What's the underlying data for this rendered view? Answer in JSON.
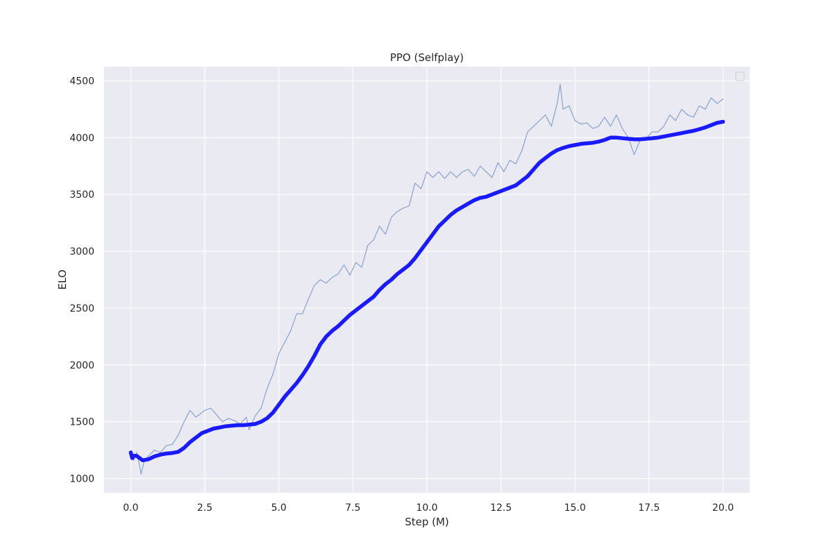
{
  "chart_data": {
    "type": "line",
    "title": "PPO (Selfplay)",
    "xlabel": "Step (M)",
    "ylabel": "ELO",
    "xlim": [
      -0.9,
      20.9
    ],
    "ylim": [
      875,
      4625
    ],
    "xticks": [
      0.0,
      2.5,
      5.0,
      7.5,
      10.0,
      12.5,
      15.0,
      17.5,
      20.0
    ],
    "xtick_labels": [
      "0.0",
      "2.5",
      "5.0",
      "7.5",
      "10.0",
      "12.5",
      "15.0",
      "17.5",
      "20.0"
    ],
    "yticks": [
      1000,
      1500,
      2000,
      2500,
      3000,
      3500,
      4000,
      4500
    ],
    "ytick_labels": [
      "1000",
      "1500",
      "2000",
      "2500",
      "3000",
      "3500",
      "4000",
      "4500"
    ],
    "grid": true,
    "legend": {
      "placement": "top-right",
      "entries": []
    },
    "colors": {
      "background": "#eaeaf2",
      "grid": "#ffffff",
      "raw": "#8ea7cf",
      "smooth": "#1a1aff"
    },
    "series": [
      {
        "role": "raw",
        "x": [
          0.0,
          0.1,
          0.2,
          0.3,
          0.35,
          0.45,
          0.6,
          0.8,
          1.0,
          1.2,
          1.4,
          1.6,
          1.8,
          2.0,
          2.2,
          2.5,
          2.7,
          2.9,
          3.1,
          3.3,
          3.5,
          3.7,
          3.9,
          4.0,
          4.2,
          4.4,
          4.6,
          4.8,
          5.0,
          5.2,
          5.4,
          5.6,
          5.8,
          6.0,
          6.2,
          6.4,
          6.6,
          6.8,
          7.0,
          7.2,
          7.4,
          7.6,
          7.8,
          8.0,
          8.2,
          8.4,
          8.6,
          8.8,
          9.0,
          9.2,
          9.4,
          9.6,
          9.8,
          10.0,
          10.2,
          10.4,
          10.6,
          10.8,
          11.0,
          11.2,
          11.4,
          11.6,
          11.8,
          12.0,
          12.2,
          12.4,
          12.6,
          12.8,
          13.0,
          13.2,
          13.4,
          13.6,
          13.8,
          14.0,
          14.2,
          14.4,
          14.5,
          14.6,
          14.8,
          15.0,
          15.2,
          15.4,
          15.6,
          15.8,
          16.0,
          16.2,
          16.4,
          16.6,
          16.8,
          17.0,
          17.2,
          17.4,
          17.6,
          17.8,
          18.0,
          18.2,
          18.4,
          18.6,
          18.8,
          19.0,
          19.2,
          19.4,
          19.6,
          19.8,
          20.0
        ],
        "y": [
          1210,
          1160,
          1230,
          1110,
          1040,
          1150,
          1200,
          1250,
          1230,
          1290,
          1300,
          1380,
          1500,
          1600,
          1540,
          1600,
          1620,
          1560,
          1500,
          1530,
          1510,
          1480,
          1540,
          1430,
          1550,
          1620,
          1790,
          1920,
          2100,
          2200,
          2300,
          2450,
          2450,
          2580,
          2700,
          2750,
          2720,
          2770,
          2800,
          2880,
          2790,
          2900,
          2860,
          3050,
          3100,
          3220,
          3150,
          3300,
          3350,
          3380,
          3400,
          3600,
          3550,
          3700,
          3650,
          3700,
          3640,
          3700,
          3650,
          3700,
          3720,
          3660,
          3750,
          3700,
          3650,
          3780,
          3700,
          3800,
          3770,
          3880,
          4050,
          4100,
          4150,
          4200,
          4100,
          4300,
          4470,
          4250,
          4280,
          4150,
          4120,
          4130,
          4080,
          4100,
          4180,
          4100,
          4200,
          4080,
          4000,
          3850,
          3980,
          3990,
          4050,
          4050,
          4100,
          4200,
          4150,
          4250,
          4200,
          4180,
          4280,
          4250,
          4350,
          4300,
          4340
        ]
      },
      {
        "role": "smoothed",
        "x": [
          0.0,
          0.05,
          0.1,
          0.2,
          0.3,
          0.4,
          0.6,
          0.8,
          1.0,
          1.2,
          1.4,
          1.6,
          1.8,
          2.0,
          2.2,
          2.4,
          2.6,
          2.8,
          3.0,
          3.2,
          3.4,
          3.6,
          3.8,
          4.0,
          4.2,
          4.4,
          4.6,
          4.8,
          5.0,
          5.2,
          5.4,
          5.6,
          5.8,
          6.0,
          6.2,
          6.4,
          6.6,
          6.8,
          7.0,
          7.2,
          7.4,
          7.6,
          7.8,
          8.0,
          8.2,
          8.4,
          8.6,
          8.8,
          9.0,
          9.2,
          9.4,
          9.6,
          9.8,
          10.0,
          10.2,
          10.4,
          10.6,
          10.8,
          11.0,
          11.2,
          11.4,
          11.6,
          11.8,
          12.0,
          12.2,
          12.4,
          12.6,
          12.8,
          13.0,
          13.2,
          13.4,
          13.6,
          13.8,
          14.0,
          14.2,
          14.4,
          14.6,
          14.8,
          15.0,
          15.2,
          15.4,
          15.6,
          15.8,
          16.0,
          16.2,
          16.4,
          16.6,
          16.8,
          17.0,
          17.2,
          17.4,
          17.6,
          17.8,
          18.0,
          18.2,
          18.4,
          18.6,
          18.8,
          19.0,
          19.2,
          19.4,
          19.6,
          19.8,
          20.0
        ],
        "y": [
          1230,
          1180,
          1200,
          1200,
          1180,
          1160,
          1170,
          1195,
          1210,
          1220,
          1225,
          1235,
          1270,
          1320,
          1360,
          1400,
          1420,
          1440,
          1450,
          1460,
          1465,
          1470,
          1470,
          1475,
          1480,
          1500,
          1530,
          1580,
          1650,
          1720,
          1780,
          1840,
          1910,
          1990,
          2080,
          2180,
          2250,
          2300,
          2340,
          2390,
          2440,
          2480,
          2520,
          2560,
          2600,
          2660,
          2710,
          2750,
          2800,
          2840,
          2880,
          2940,
          3010,
          3080,
          3150,
          3220,
          3270,
          3320,
          3360,
          3390,
          3420,
          3450,
          3470,
          3480,
          3500,
          3520,
          3540,
          3560,
          3580,
          3620,
          3660,
          3720,
          3780,
          3820,
          3860,
          3890,
          3910,
          3925,
          3935,
          3945,
          3950,
          3955,
          3965,
          3980,
          4000,
          4000,
          3995,
          3990,
          3985,
          3985,
          3990,
          3995,
          4000,
          4010,
          4020,
          4030,
          4040,
          4050,
          4060,
          4075,
          4090,
          4110,
          4130,
          4140
        ]
      }
    ]
  }
}
